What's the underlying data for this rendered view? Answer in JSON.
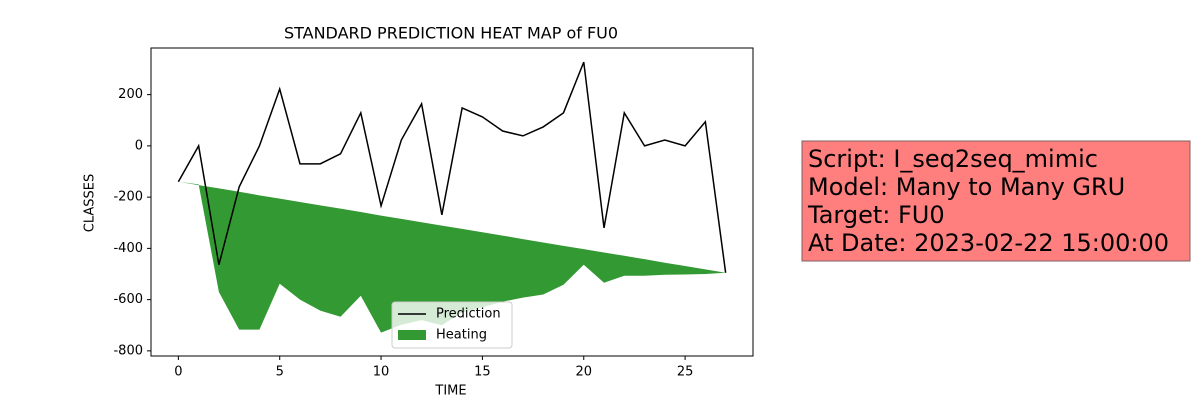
{
  "chart_data": {
    "type": "line",
    "title": "STANDARD PREDICTION HEAT MAP of FU0",
    "xlabel": "TIME",
    "ylabel": "CLASSES",
    "x": [
      0,
      1,
      2,
      3,
      4,
      5,
      6,
      7,
      8,
      9,
      10,
      11,
      12,
      13,
      14,
      15,
      16,
      17,
      18,
      19,
      20,
      21,
      22,
      23,
      24,
      25,
      26,
      27
    ],
    "series": [
      {
        "name": "Prediction",
        "color": "#000000",
        "values": [
          -140,
          0,
          -464,
          -160,
          0,
          222,
          -70,
          -70,
          -31,
          129,
          -234,
          23,
          164,
          -269,
          148,
          113,
          58,
          39,
          74,
          129,
          327,
          -320,
          129,
          0,
          23,
          0,
          94,
          -495
        ]
      },
      {
        "name": "Heating",
        "color": "#008000",
        "alpha": 0.8,
        "upper": [
          -140,
          -153,
          -166,
          -179,
          -193,
          -206,
          -219,
          -232,
          -245,
          -258,
          -272,
          -285,
          -298,
          -311,
          -324,
          -337,
          -350,
          -364,
          -377,
          -390,
          -403,
          -416,
          -429,
          -442,
          -456,
          -469,
          -482,
          -495
        ],
        "values": [
          -140,
          -150,
          -570,
          -717,
          -717,
          -538,
          -600,
          -643,
          -667,
          -585,
          -729,
          -698,
          -680,
          -700,
          -650,
          -630,
          -608,
          -592,
          -580,
          -542,
          -464,
          -534,
          -507,
          -507,
          -503,
          -502,
          -500,
          -495
        ]
      }
    ],
    "xlim": [
      -1.35,
      28.35
    ],
    "ylim": [
      -820,
      382
    ],
    "xticks": [
      0,
      5,
      10,
      15,
      20,
      25
    ],
    "yticks": [
      -800,
      -600,
      -400,
      -200,
      0,
      200
    ],
    "legend": "lower center",
    "annotation": [
      "Script: I_seq2seq_mimic",
      "Model: Many to Many GRU",
      "Target: FU0",
      "At Date: 2023-02-22 15:00:00"
    ]
  }
}
